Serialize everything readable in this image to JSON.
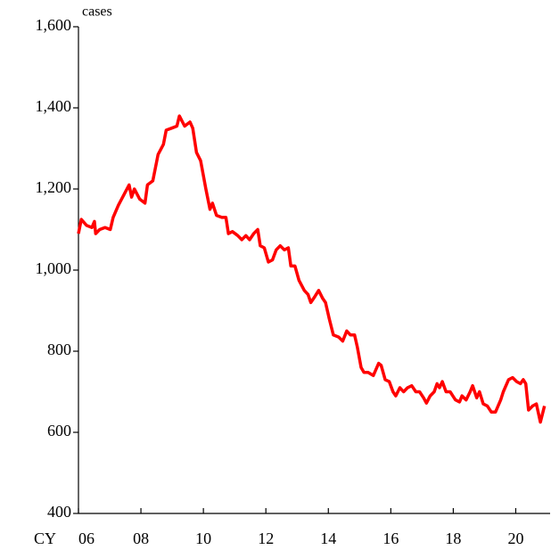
{
  "chart_data": {
    "type": "line",
    "y_label": "cases",
    "x_label": "CY",
    "xlim": [
      2006,
      2021.1
    ],
    "xticks": [
      {
        "value": 2006,
        "label": "06"
      },
      {
        "value": 2008,
        "label": "08"
      },
      {
        "value": 2010,
        "label": "10"
      },
      {
        "value": 2012,
        "label": "12"
      },
      {
        "value": 2014,
        "label": "14"
      },
      {
        "value": 2016,
        "label": "16"
      },
      {
        "value": 2018,
        "label": "18"
      },
      {
        "value": 2020,
        "label": "20"
      }
    ],
    "ylim": [
      400,
      1600
    ],
    "yticks": [
      {
        "value": 400,
        "label": "400"
      },
      {
        "value": 600,
        "label": "600"
      },
      {
        "value": 800,
        "label": "800"
      },
      {
        "value": 1000,
        "label": "1,000"
      },
      {
        "value": 1200,
        "label": "1,200"
      },
      {
        "value": 1400,
        "label": "1,400"
      },
      {
        "value": 1600,
        "label": "1,600"
      }
    ],
    "series": [
      {
        "color": "#ff0000",
        "x": [
          2006,
          2006.09,
          2006.26,
          2006.43,
          2006.51,
          2006.55,
          2006.68,
          2006.85,
          2007.02,
          2007.11,
          2007.28,
          2007.45,
          2007.62,
          2007.7,
          2007.79,
          2007.96,
          2008.13,
          2008.21,
          2008.38,
          2008.55,
          2008.72,
          2008.81,
          2008.98,
          2009.15,
          2009.23,
          2009.4,
          2009.57,
          2009.66,
          2009.78,
          2009.91,
          2010.08,
          2010.21,
          2010.29,
          2010.42,
          2010.59,
          2010.72,
          2010.8,
          2010.93,
          2011.1,
          2011.23,
          2011.36,
          2011.48,
          2011.61,
          2011.74,
          2011.82,
          2011.95,
          2012.08,
          2012.21,
          2012.33,
          2012.46,
          2012.59,
          2012.72,
          2012.8,
          2012.93,
          2013.06,
          2013.23,
          2013.35,
          2013.44,
          2013.57,
          2013.69,
          2013.82,
          2013.91,
          2014.03,
          2014.16,
          2014.33,
          2014.46,
          2014.59,
          2014.71,
          2014.84,
          2014.93,
          2015.05,
          2015.14,
          2015.27,
          2015.44,
          2015.61,
          2015.69,
          2015.82,
          2015.95,
          2016.07,
          2016.16,
          2016.29,
          2016.41,
          2016.54,
          2016.67,
          2016.8,
          2016.92,
          2017.05,
          2017.14,
          2017.26,
          2017.39,
          2017.48,
          2017.56,
          2017.65,
          2017.77,
          2017.9,
          2018.07,
          2018.2,
          2018.28,
          2018.41,
          2018.54,
          2018.62,
          2018.75,
          2018.84,
          2018.96,
          2019.09,
          2019.22,
          2019.35,
          2019.52,
          2019.6,
          2019.77,
          2019.9,
          2020.03,
          2020.15,
          2020.24,
          2020.32,
          2020.41,
          2020.54,
          2020.66,
          2020.79,
          2020.92
        ],
        "values": [
          1090,
          1125,
          1110,
          1105,
          1120,
          1090,
          1100,
          1105,
          1100,
          1130,
          1160,
          1185,
          1210,
          1180,
          1200,
          1175,
          1165,
          1210,
          1220,
          1285,
          1310,
          1345,
          1350,
          1355,
          1380,
          1355,
          1365,
          1350,
          1290,
          1270,
          1200,
          1150,
          1165,
          1135,
          1130,
          1130,
          1090,
          1095,
          1085,
          1075,
          1085,
          1075,
          1090,
          1100,
          1060,
          1055,
          1020,
          1025,
          1050,
          1060,
          1050,
          1055,
          1010,
          1010,
          975,
          950,
          940,
          920,
          935,
          950,
          930,
          920,
          880,
          840,
          835,
          825,
          850,
          840,
          840,
          810,
          760,
          748,
          748,
          740,
          770,
          765,
          730,
          725,
          700,
          690,
          710,
          700,
          710,
          715,
          700,
          700,
          685,
          672,
          690,
          700,
          720,
          710,
          725,
          700,
          700,
          680,
          675,
          690,
          680,
          700,
          715,
          685,
          700,
          670,
          665,
          650,
          650,
          680,
          700,
          730,
          735,
          725,
          720,
          730,
          720,
          655,
          665,
          670,
          625,
          665
        ]
      }
    ]
  }
}
